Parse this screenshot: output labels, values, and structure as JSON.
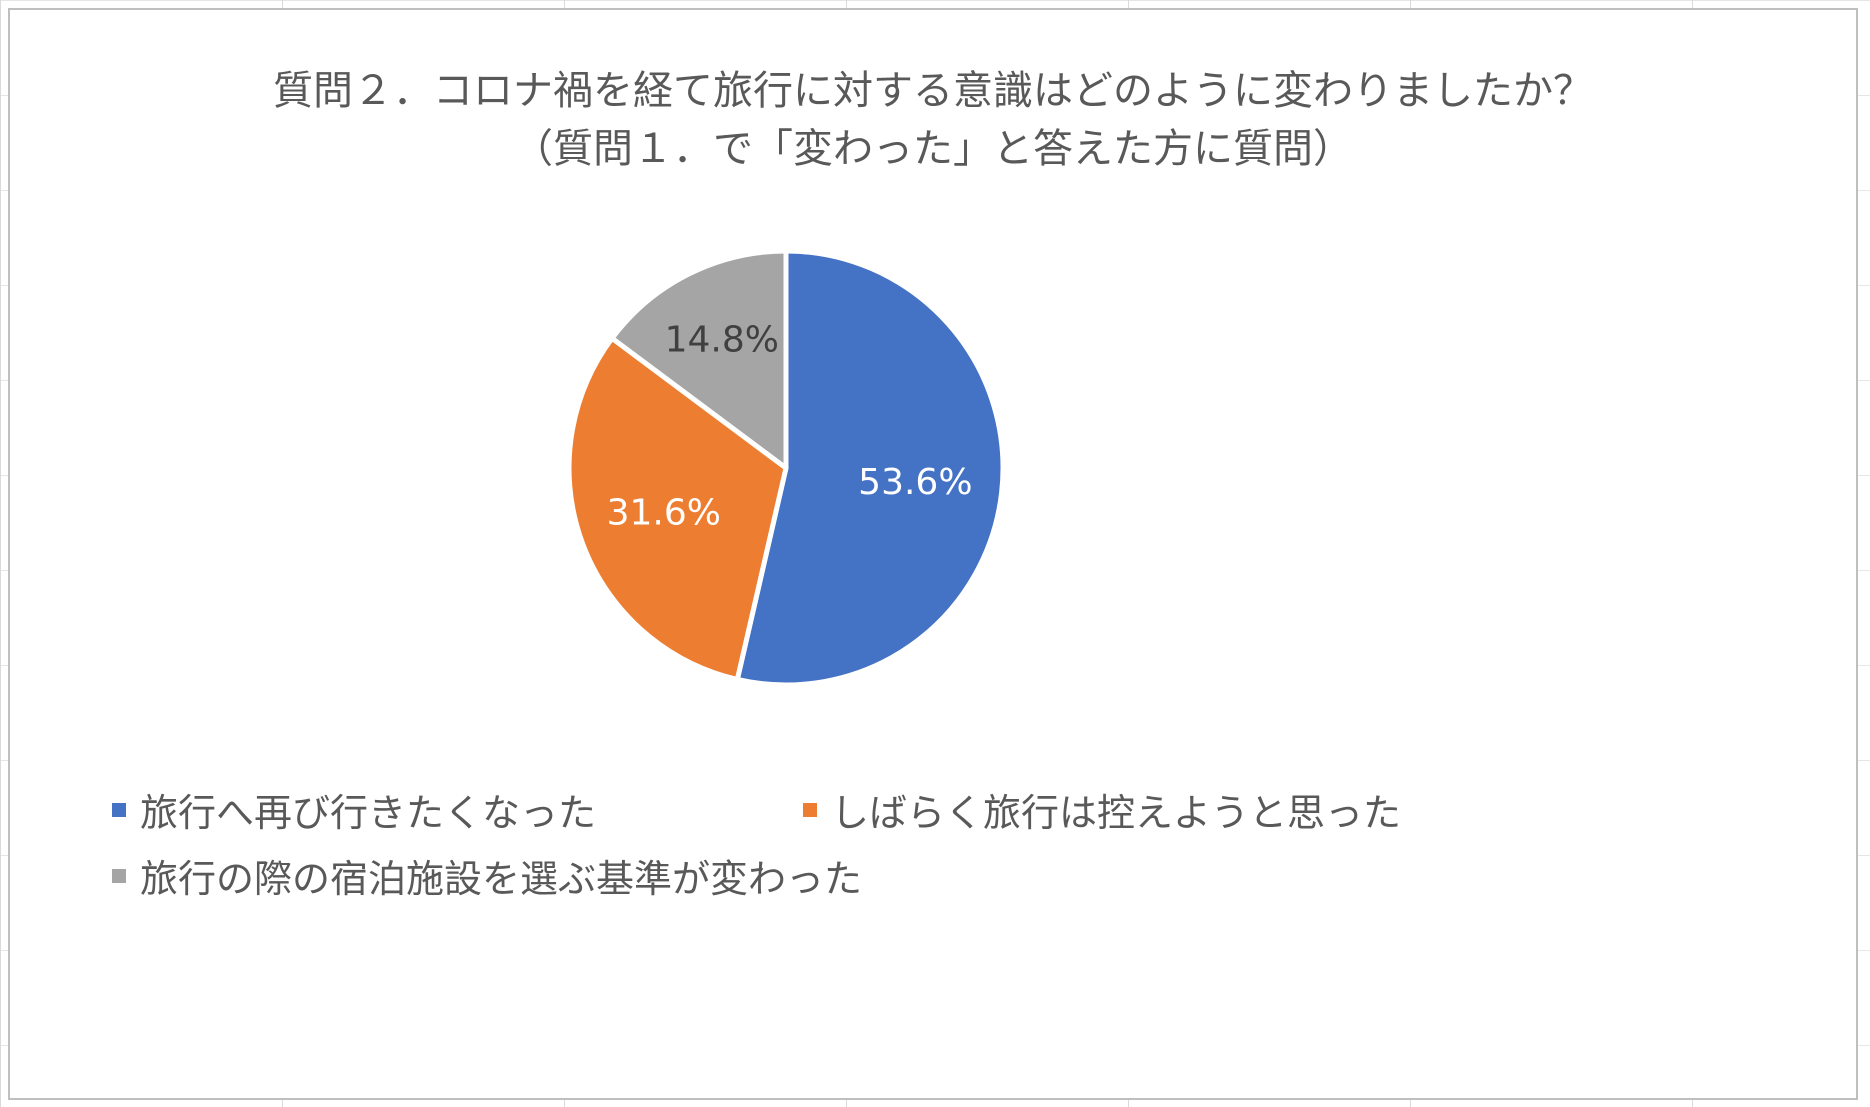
{
  "chart_data": {
    "type": "pie",
    "title": "質問２．コロナ禍を経て旅行に対する意識はどのように変わりましたか？",
    "subtitle": "（質問１．で「変わった」と答えた方に質問）",
    "categories": [
      "旅行へ再び行きたくなった",
      "しばらく旅行は控えようと思った",
      "旅行の際の宿泊施設を選ぶ基準が変わった"
    ],
    "values": [
      53.6,
      31.6,
      14.8
    ],
    "data_labels": [
      "53.6%",
      "31.6%",
      "14.8%"
    ],
    "colors": [
      "#4472c4",
      "#ed7d31",
      "#a5a5a5"
    ],
    "label_colors": [
      "#ffffff",
      "#ffffff",
      "#404040"
    ],
    "legend_position": "bottom"
  }
}
